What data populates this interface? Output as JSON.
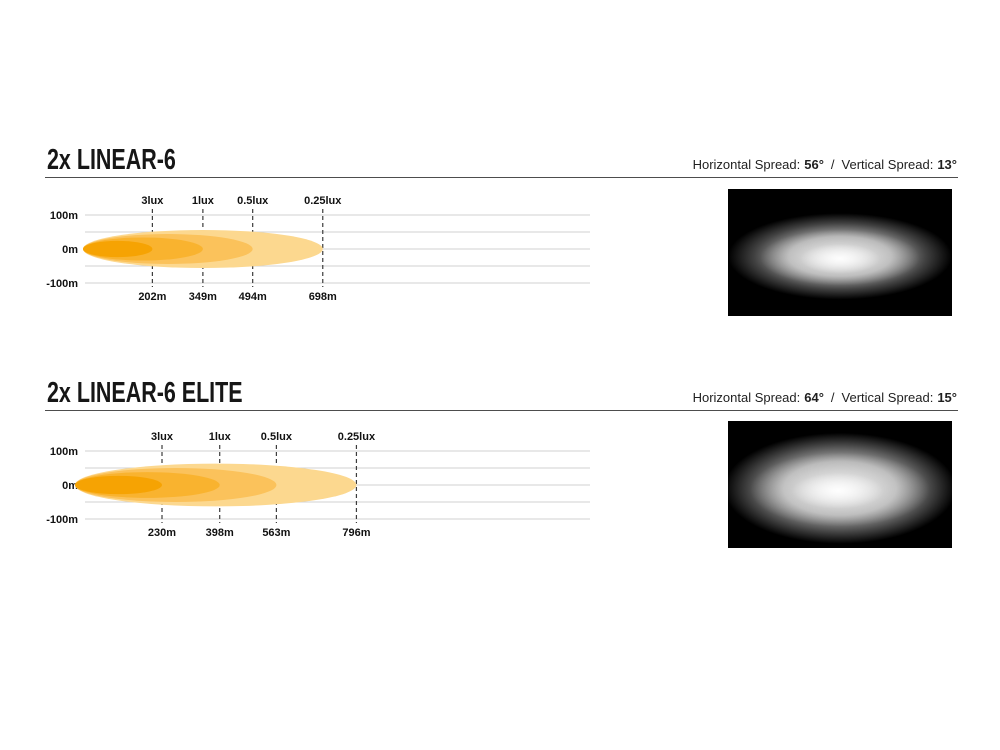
{
  "sections": [
    {
      "title": "2x LINEAR-6",
      "spread": {
        "h_label": "Horizontal Spread:",
        "h_value": "56°",
        "sep": "/",
        "v_label": "Vertical Spread:",
        "v_value": "13°"
      }
    },
    {
      "title": "2x LINEAR-6 ELITE",
      "spread": {
        "h_label": "Horizontal Spread:",
        "h_value": "64°",
        "sep": "/",
        "v_label": "Vertical Spread:",
        "v_value": "15°"
      }
    }
  ],
  "chart_data": [
    {
      "type": "area",
      "title": "2x LINEAR-6",
      "x_unit": "m",
      "ylim": [
        -115,
        115
      ],
      "grid": true,
      "grid_values": [
        100,
        50,
        0,
        -50,
        -100
      ],
      "y_ticks": [
        {
          "label": "100m",
          "value": 100
        },
        {
          "label": "0m",
          "value": 0
        },
        {
          "label": "-100m",
          "value": -100
        }
      ],
      "bands": [
        {
          "lux_label": "3lux",
          "distance_m": 202,
          "distance_label": "202m",
          "half_height_m": 24,
          "color": "#F6A303"
        },
        {
          "lux_label": "1lux",
          "distance_m": 349,
          "distance_label": "349m",
          "half_height_m": 34,
          "color": "#F9B32F"
        },
        {
          "lux_label": "0.5lux",
          "distance_m": 494,
          "distance_label": "494m",
          "half_height_m": 44,
          "color": "#FBC25B"
        },
        {
          "lux_label": "0.25lux",
          "distance_m": 698,
          "distance_label": "698m",
          "half_height_m": 56,
          "color": "#FCD88F"
        }
      ]
    },
    {
      "type": "area",
      "title": "2x LINEAR-6 ELITE",
      "x_unit": "m",
      "ylim": [
        -115,
        115
      ],
      "grid": true,
      "grid_values": [
        100,
        50,
        0,
        -50,
        -100
      ],
      "y_ticks": [
        {
          "label": "100m",
          "value": 100
        },
        {
          "label": "0m",
          "value": 0
        },
        {
          "label": "-100m",
          "value": -100
        }
      ],
      "bands": [
        {
          "lux_label": "3lux",
          "distance_m": 230,
          "distance_label": "230m",
          "half_height_m": 27,
          "color": "#F6A303"
        },
        {
          "lux_label": "1lux",
          "distance_m": 398,
          "distance_label": "398m",
          "half_height_m": 38,
          "color": "#F9B32F"
        },
        {
          "lux_label": "0.5lux",
          "distance_m": 563,
          "distance_label": "563m",
          "half_height_m": 50,
          "color": "#FBC25B"
        },
        {
          "lux_label": "0.25lux",
          "distance_m": 796,
          "distance_label": "796m",
          "half_height_m": 63,
          "color": "#FCD88F"
        }
      ]
    }
  ]
}
